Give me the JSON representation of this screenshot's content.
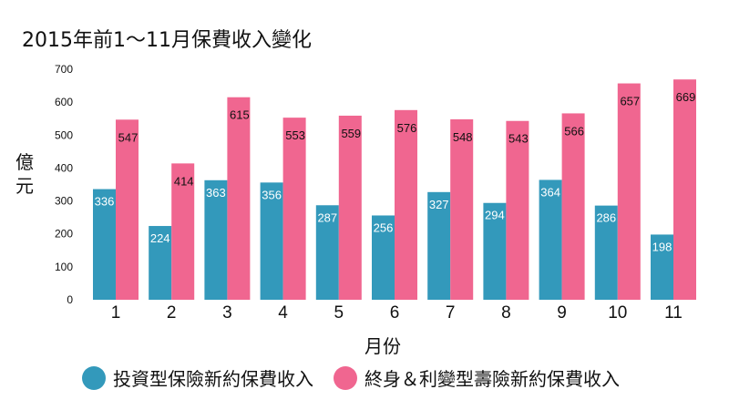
{
  "colors": {
    "investment": "#3399bb",
    "life": "#f06690"
  },
  "chart_data": {
    "type": "bar",
    "title": "2015年前1～11月保費收入變化",
    "xlabel": "月份",
    "ylabel": "億元",
    "categories": [
      "1",
      "2",
      "3",
      "4",
      "5",
      "6",
      "7",
      "8",
      "9",
      "10",
      "11"
    ],
    "ylim": [
      0,
      700
    ],
    "yticks": [
      0,
      100,
      200,
      300,
      400,
      500,
      600,
      700
    ],
    "grid": false,
    "legend_position": "bottom",
    "series": [
      {
        "name": "投資型保險新約保費收入",
        "values": [
          336,
          224,
          363,
          356,
          287,
          256,
          327,
          294,
          364,
          286,
          198
        ]
      },
      {
        "name": "終身＆利變型壽險新約保費收入",
        "values": [
          547,
          414,
          615,
          553,
          559,
          576,
          548,
          543,
          566,
          657,
          669
        ]
      }
    ]
  }
}
